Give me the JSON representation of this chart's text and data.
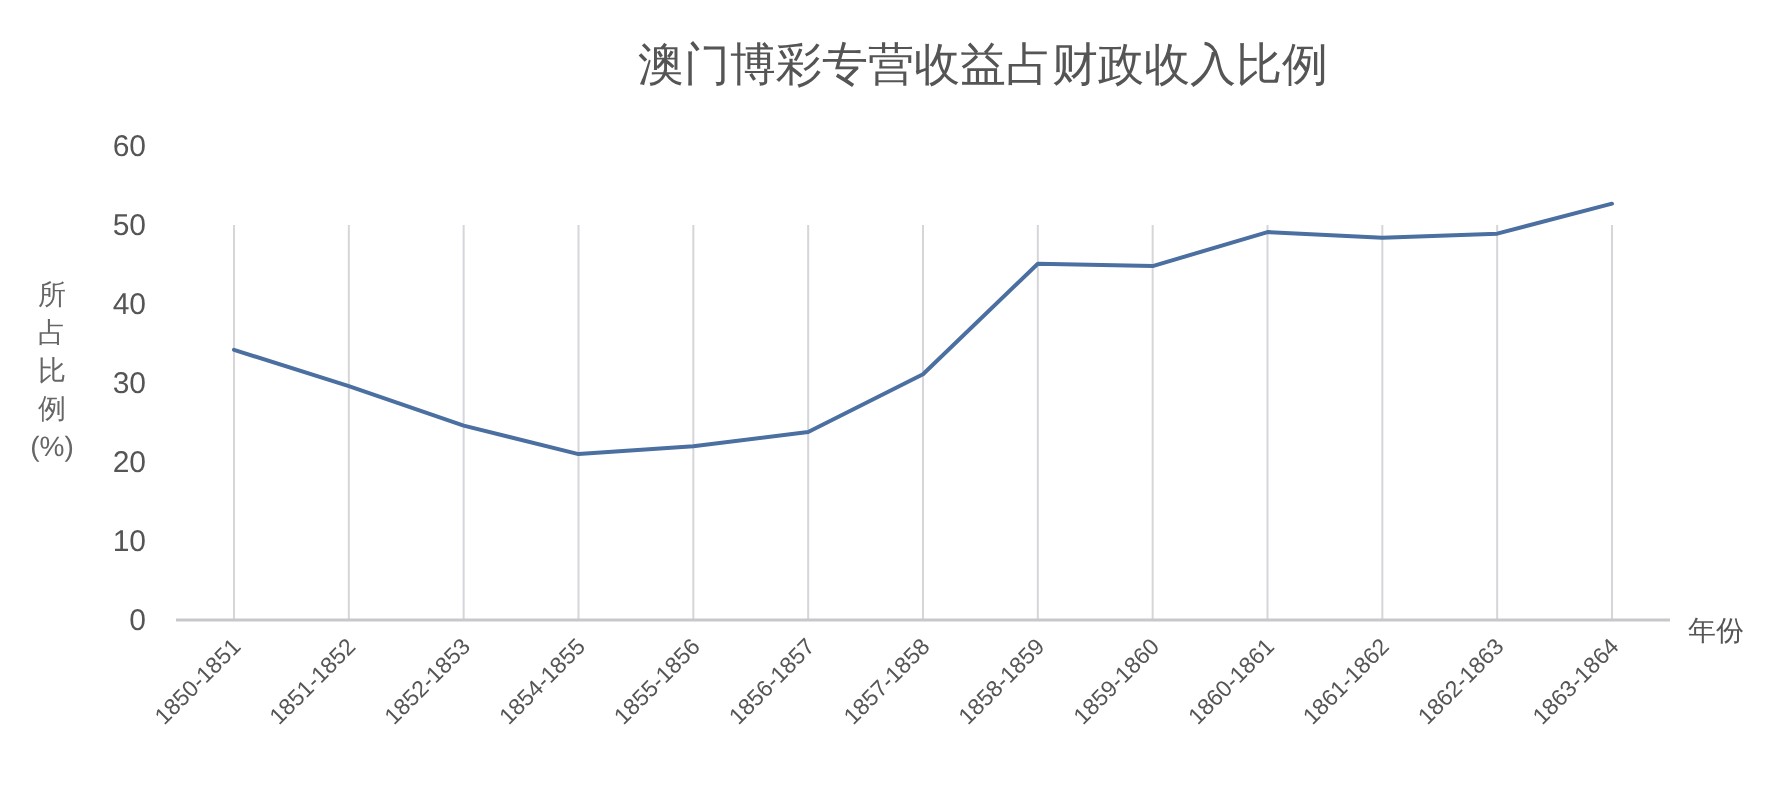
{
  "chart_data": {
    "type": "line",
    "title": "澳门博彩专营收益占财政收入比例",
    "xlabel": "年份",
    "ylabel": "所占比例(%)",
    "categories": [
      "1850-1851",
      "1851-1852",
      "1852-1853",
      "1854-1855",
      "1855-1856",
      "1856-1857",
      "1857-1858",
      "1858-1859",
      "1859-1860",
      "1860-1861",
      "1861-1862",
      "1862-1863",
      "1863-1864"
    ],
    "series": [
      {
        "color": "#4a6fa0",
        "values": [
          34.2,
          29.6,
          24.6,
          21.0,
          22.0,
          23.8,
          31.1,
          45.1,
          44.8,
          49.1,
          48.4,
          48.9,
          52.7
        ]
      }
    ],
    "ylim": [
      0,
      60
    ],
    "yticks": [
      0,
      10,
      20,
      30,
      40,
      50,
      60
    ],
    "grid": "x",
    "marker": "none",
    "line_style": "solid"
  }
}
